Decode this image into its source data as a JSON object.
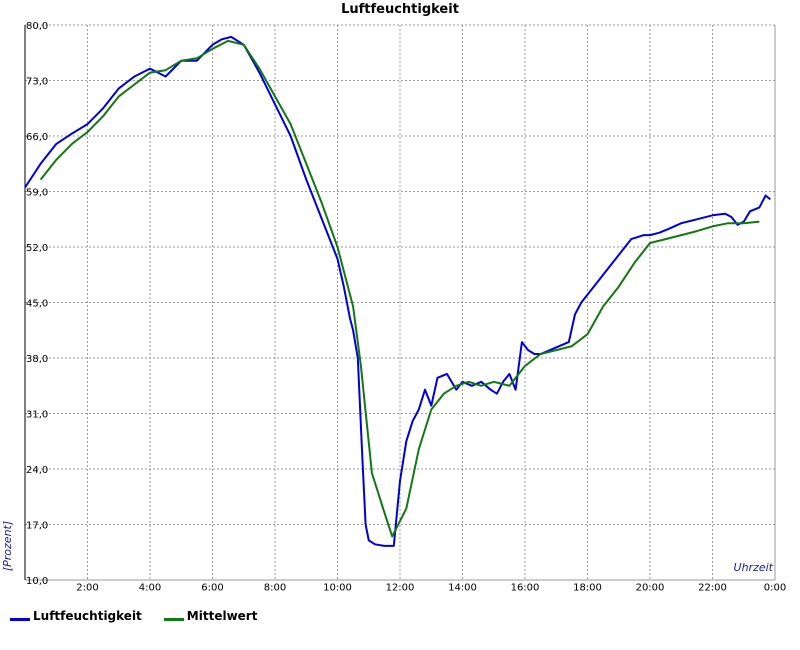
{
  "chart_data": {
    "type": "line",
    "title": "Luftfeuchtigkeit",
    "xlabel": "Uhrzeit",
    "ylabel": "[Prozent]",
    "xlim": [
      0,
      24
    ],
    "ylim": [
      10,
      80
    ],
    "grid": true,
    "legend_position": "bottom-left",
    "yticks": [
      "80,0",
      "73,0",
      "66,0",
      "59,0",
      "52,0",
      "45,0",
      "38,0",
      "31,0",
      "24,0",
      "17,0",
      "10,0"
    ],
    "xticks": [
      "2:00",
      "4:00",
      "6:00",
      "8:00",
      "10:00",
      "12:00",
      "14:00",
      "16:00",
      "18:00",
      "20:00",
      "22:00",
      "0:00"
    ],
    "series": [
      {
        "name": "Luftfeuchtigkeit",
        "color": "#0000dd",
        "x": [
          0,
          0.5,
          1,
          1.5,
          2,
          2.5,
          3,
          3.5,
          4,
          4.5,
          5,
          5.5,
          6,
          6.3,
          6.6,
          7,
          7.5,
          8,
          8.5,
          9,
          9.5,
          10,
          10.2,
          10.4,
          10.5,
          10.65,
          10.8,
          10.9,
          11,
          11.2,
          11.5,
          11.8,
          12,
          12.2,
          12.4,
          12.6,
          12.8,
          13,
          13.2,
          13.5,
          13.8,
          14,
          14.3,
          14.6,
          14.9,
          15.1,
          15.3,
          15.5,
          15.7,
          15.9,
          16.1,
          16.3,
          16.5,
          16.8,
          17.1,
          17.4,
          17.6,
          17.8,
          18,
          18.3,
          18.6,
          19,
          19.4,
          19.8,
          20,
          20.3,
          20.6,
          21,
          21.5,
          22,
          22.4,
          22.6,
          22.8,
          23,
          23.2,
          23.5,
          23.7,
          23.85
        ],
        "values": [
          59.5,
          62.5,
          65,
          66.3,
          67.5,
          69.5,
          72,
          73.5,
          74.5,
          73.5,
          75.5,
          75.5,
          77.5,
          78.2,
          78.5,
          77.5,
          74,
          70,
          66,
          60.5,
          55.5,
          50.5,
          47,
          43,
          41.5,
          38,
          25,
          17,
          15,
          14.5,
          14.3,
          14.3,
          22.5,
          27.5,
          30,
          31.5,
          34,
          32,
          35.5,
          36,
          34,
          35,
          34.5,
          35,
          34,
          33.5,
          35,
          36,
          34,
          40,
          39,
          38.5,
          38.5,
          39,
          39.5,
          40,
          43.5,
          45,
          46,
          47.5,
          49,
          51,
          53,
          53.5,
          53.5,
          53.8,
          54.3,
          55,
          55.5,
          56,
          56.2,
          55.8,
          54.8,
          55.2,
          56.5,
          57,
          58.5,
          58
        ]
      },
      {
        "name": "Mittelwert",
        "color": "#127812",
        "x": [
          0.5,
          1,
          1.5,
          2,
          2.5,
          3,
          3.5,
          4,
          4.5,
          5,
          5.5,
          6,
          6.5,
          7,
          7.5,
          8,
          8.5,
          9,
          9.5,
          10,
          10.5,
          10.75,
          11.1,
          11.5,
          11.75,
          12.2,
          12.6,
          13,
          13.4,
          13.8,
          14.2,
          14.6,
          15,
          15.5,
          16,
          16.5,
          17,
          17.5,
          18,
          18.5,
          19,
          19.5,
          20,
          20.5,
          21,
          21.5,
          22,
          22.5,
          23,
          23.5
        ],
        "values": [
          60.5,
          63,
          65,
          66.5,
          68.5,
          71,
          72.5,
          74,
          74.3,
          75.5,
          75.8,
          77,
          78,
          77.5,
          74.5,
          71,
          67.5,
          62.5,
          57.5,
          52,
          44.5,
          37,
          23.5,
          18.5,
          15.5,
          19,
          26.5,
          31.5,
          33.5,
          34.5,
          35,
          34.5,
          35,
          34.5,
          37,
          38.5,
          39,
          39.5,
          41,
          44.5,
          47,
          50,
          52.5,
          53,
          53.5,
          54,
          54.6,
          55,
          55,
          55.2
        ]
      }
    ]
  }
}
